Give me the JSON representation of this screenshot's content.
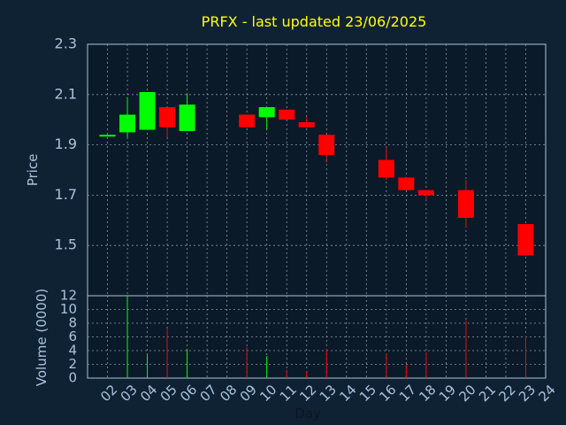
{
  "chart_data": {
    "type": "candlestick",
    "title": "PRFX - last updated 23/06/2025",
    "xlabel": "Day",
    "price_panel": {
      "ylabel": "Price",
      "ylim": [
        1.3,
        2.3
      ],
      "yticks": [
        "2.3",
        "2.1",
        "1.9",
        "1.7",
        "1.5"
      ],
      "ytick_values": [
        2.3,
        2.1,
        1.9,
        1.7,
        1.5
      ]
    },
    "volume_panel": {
      "ylabel": "Volume (0000)",
      "ylim": [
        0,
        12
      ],
      "yticks": [
        "12",
        "10",
        "8",
        "6",
        "4",
        "2",
        "0"
      ],
      "ytick_values": [
        12,
        10,
        8,
        6,
        4,
        2,
        0
      ]
    },
    "days": [
      "02",
      "03",
      "04",
      "05",
      "06",
      "07",
      "08",
      "09",
      "10",
      "11",
      "12",
      "13",
      "14",
      "15",
      "16",
      "17",
      "18",
      "19",
      "20",
      "21",
      "22",
      "23",
      "24"
    ],
    "candles": [
      {
        "day": "02",
        "open": 1.94,
        "close": 1.94,
        "high": 1.94,
        "low": 1.94,
        "volume": 0
      },
      {
        "day": "03",
        "open": 1.95,
        "close": 2.02,
        "high": 2.09,
        "low": 1.93,
        "volume": 12
      },
      {
        "day": "04",
        "open": 1.96,
        "close": 2.11,
        "high": 2.11,
        "low": 1.96,
        "volume": 3.4
      },
      {
        "day": "05",
        "open": 2.05,
        "close": 1.97,
        "high": 2.05,
        "low": 1.93,
        "volume": 7.2
      },
      {
        "day": "06",
        "open": 1.955,
        "close": 2.06,
        "high": 2.1,
        "low": 1.955,
        "volume": 4.2
      },
      {
        "day": "09",
        "open": 2.02,
        "close": 1.97,
        "high": 2.02,
        "low": 1.97,
        "volume": 4.5
      },
      {
        "day": "10",
        "open": 2.01,
        "close": 2.05,
        "high": 2.05,
        "low": 1.96,
        "volume": 3.2
      },
      {
        "day": "11",
        "open": 2.04,
        "close": 2.0,
        "high": 2.04,
        "low": 2.0,
        "volume": 1.2
      },
      {
        "day": "12",
        "open": 1.99,
        "close": 1.97,
        "high": 2.01,
        "low": 1.97,
        "volume": 1.0
      },
      {
        "day": "13",
        "open": 1.94,
        "close": 1.86,
        "high": 1.94,
        "low": 1.83,
        "volume": 4.2
      },
      {
        "day": "16",
        "open": 1.84,
        "close": 1.77,
        "high": 1.89,
        "low": 1.76,
        "volume": 3.6
      },
      {
        "day": "17",
        "open": 1.77,
        "close": 1.72,
        "high": 1.77,
        "low": 1.72,
        "volume": 2.0
      },
      {
        "day": "18",
        "open": 1.72,
        "close": 1.7,
        "high": 1.72,
        "low": 1.68,
        "volume": 3.8
      },
      {
        "day": "20",
        "open": 1.72,
        "close": 1.61,
        "high": 1.76,
        "low": 1.57,
        "volume": 8.4
      },
      {
        "day": "23",
        "open": 1.585,
        "close": 1.46,
        "high": 1.585,
        "low": 1.46,
        "volume": 6.2
      }
    ],
    "grid": true,
    "up_color": "#00ff00",
    "down_color": "#ff0000",
    "background": "#0f2233",
    "plot_background": "#0a1a28",
    "grid_color": "#8a9aa8",
    "text_color": "#a9c3dc",
    "title_color": "#ffff00"
  }
}
